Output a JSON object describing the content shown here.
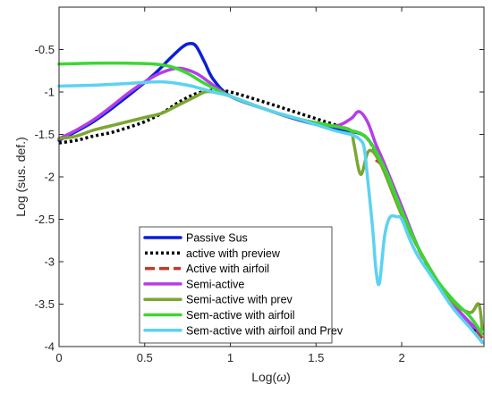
{
  "chart_data": {
    "type": "line",
    "title": "",
    "xlabel_prefix": "Log(",
    "xlabel_symbol": "ω",
    "xlabel_suffix": ")",
    "ylabel": "Log (sus. def.)",
    "xlim": [
      0,
      2.48
    ],
    "ylim": [
      -4,
      0
    ],
    "xticks": [
      {
        "value": 0,
        "label": "0"
      },
      {
        "value": 0.5,
        "label": "0.5"
      },
      {
        "value": 1,
        "label": "1"
      },
      {
        "value": 1.5,
        "label": "1.5"
      },
      {
        "value": 2,
        "label": "2"
      }
    ],
    "yticks": [
      {
        "value": -0.5,
        "label": "-0.5"
      },
      {
        "value": -1,
        "label": "-1"
      },
      {
        "value": -1.5,
        "label": "-1.5"
      },
      {
        "value": -2,
        "label": "-2"
      },
      {
        "value": -2.5,
        "label": "-2.5"
      },
      {
        "value": -3,
        "label": "-3"
      },
      {
        "value": -3.5,
        "label": "-3.5"
      },
      {
        "value": -4,
        "label": "-4"
      }
    ],
    "grid": false,
    "legend_position": "bottom-center",
    "series": [
      {
        "name": "Passive Sus",
        "color": "#0a1fd6",
        "dash": "solid",
        "x": [
          0,
          0.2,
          0.4,
          0.55,
          0.65,
          0.72,
          0.76,
          0.8,
          0.85,
          0.9,
          1.0,
          1.2,
          1.4,
          1.6,
          1.7,
          1.8,
          1.9,
          2.0,
          2.1,
          2.2,
          2.3,
          2.4,
          2.47
        ],
        "y": [
          -1.57,
          -1.35,
          -1.05,
          -0.8,
          -0.6,
          -0.47,
          -0.43,
          -0.46,
          -0.65,
          -0.85,
          -1.05,
          -1.2,
          -1.33,
          -1.43,
          -1.46,
          -1.55,
          -1.9,
          -2.4,
          -2.85,
          -3.2,
          -3.5,
          -3.75,
          -3.95
        ]
      },
      {
        "name": "active with preview",
        "color": "#000000",
        "dash": "dotted",
        "x": [
          0,
          0.1,
          0.2,
          0.3,
          0.4,
          0.5,
          0.6,
          0.7,
          0.8,
          0.9,
          1.0,
          1.2,
          1.4,
          1.6,
          1.7,
          1.8,
          1.9,
          2.0,
          2.1,
          2.2,
          2.3,
          2.4,
          2.47
        ],
        "y": [
          -1.6,
          -1.57,
          -1.52,
          -1.48,
          -1.42,
          -1.35,
          -1.25,
          -1.12,
          -1.02,
          -0.98,
          -1.0,
          -1.12,
          -1.25,
          -1.38,
          -1.45,
          -1.55,
          -1.92,
          -2.4,
          -2.85,
          -3.2,
          -3.5,
          -3.75,
          -3.9
        ]
      },
      {
        "name": "Active with airfoil",
        "color": "#c0392b",
        "dash": "dashed",
        "x": [
          1.85,
          1.9,
          2.0,
          2.1,
          2.2,
          2.3,
          2.4,
          2.47
        ],
        "y": [
          -1.8,
          -1.92,
          -2.42,
          -2.86,
          -3.22,
          -3.5,
          -3.75,
          -3.9
        ]
      },
      {
        "name": "Semi-active",
        "color": "#b43ee8",
        "dash": "solid",
        "x": [
          0,
          0.1,
          0.2,
          0.3,
          0.4,
          0.5,
          0.6,
          0.7,
          0.8,
          0.9,
          1.0,
          1.2,
          1.4,
          1.6,
          1.7,
          1.75,
          1.8,
          1.85,
          1.9,
          2.0,
          2.1,
          2.2,
          2.3,
          2.4,
          2.47
        ],
        "y": [
          -1.55,
          -1.45,
          -1.33,
          -1.18,
          -1.02,
          -0.88,
          -0.77,
          -0.72,
          -0.78,
          -0.92,
          -1.05,
          -1.2,
          -1.32,
          -1.4,
          -1.32,
          -1.23,
          -1.35,
          -1.62,
          -1.85,
          -2.35,
          -2.85,
          -3.2,
          -3.5,
          -3.72,
          -3.85
        ]
      },
      {
        "name": "Semi-active with prev",
        "color": "#7aa632",
        "dash": "solid",
        "x": [
          0,
          0.1,
          0.2,
          0.3,
          0.4,
          0.5,
          0.6,
          0.7,
          0.8,
          0.85,
          0.9,
          1.0,
          1.2,
          1.4,
          1.6,
          1.7,
          1.72,
          1.76,
          1.8,
          1.83,
          1.87,
          1.9,
          2.0,
          2.1,
          2.2,
          2.3,
          2.4,
          2.45,
          2.47
        ],
        "y": [
          -1.55,
          -1.52,
          -1.45,
          -1.4,
          -1.35,
          -1.3,
          -1.25,
          -1.15,
          -1.05,
          -1.0,
          -1.0,
          -1.05,
          -1.2,
          -1.32,
          -1.4,
          -1.45,
          -1.6,
          -1.97,
          -1.72,
          -1.7,
          -1.82,
          -1.95,
          -2.45,
          -2.85,
          -3.2,
          -3.48,
          -3.6,
          -3.5,
          -3.8
        ]
      },
      {
        "name": "Sem-active with airfoil",
        "color": "#3cd732",
        "dash": "solid",
        "x": [
          0,
          0.2,
          0.4,
          0.55,
          0.65,
          0.75,
          0.85,
          1.0,
          1.2,
          1.4,
          1.6,
          1.7,
          1.8,
          1.9,
          2.0,
          2.1,
          2.2,
          2.3,
          2.4,
          2.47
        ],
        "y": [
          -0.67,
          -0.66,
          -0.66,
          -0.67,
          -0.7,
          -0.78,
          -0.9,
          -1.05,
          -1.2,
          -1.32,
          -1.4,
          -1.45,
          -1.55,
          -1.9,
          -2.4,
          -2.85,
          -3.2,
          -3.45,
          -3.65,
          -3.85
        ]
      },
      {
        "name": "Sem-active with airfoil and Prev",
        "color": "#5cd2f2",
        "dash": "solid",
        "x": [
          0,
          0.2,
          0.4,
          0.6,
          0.75,
          0.9,
          1.0,
          1.2,
          1.4,
          1.6,
          1.7,
          1.75,
          1.78,
          1.8,
          1.83,
          1.85,
          1.87,
          1.9,
          1.93,
          1.97,
          2.0,
          2.05,
          2.1,
          2.2,
          2.3,
          2.4,
          2.47
        ],
        "y": [
          -0.93,
          -0.92,
          -0.9,
          -0.88,
          -0.92,
          -1.0,
          -1.05,
          -1.2,
          -1.32,
          -1.45,
          -1.5,
          -1.55,
          -1.65,
          -2.0,
          -2.6,
          -3.1,
          -3.25,
          -2.7,
          -2.48,
          -2.47,
          -2.5,
          -2.75,
          -2.95,
          -3.25,
          -3.55,
          -3.78,
          -3.95
        ]
      }
    ]
  }
}
